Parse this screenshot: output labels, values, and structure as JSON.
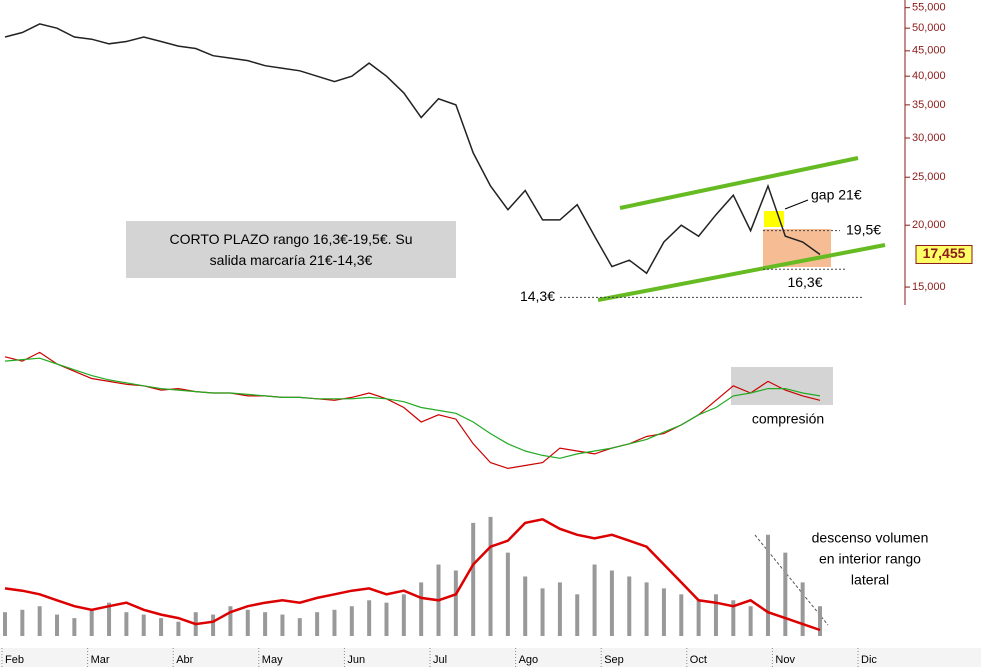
{
  "chart_data": {
    "type": "line",
    "months": [
      "Feb",
      "Mar",
      "Abr",
      "May",
      "Jun",
      "Jul",
      "Ago",
      "Sep",
      "Oct",
      "Nov",
      "Dic"
    ],
    "price": {
      "values": [
        48000,
        49000,
        51000,
        50000,
        48000,
        47500,
        46500,
        47000,
        48000,
        47000,
        46000,
        45500,
        44000,
        43500,
        43000,
        42000,
        41500,
        41000,
        40000,
        39000,
        40000,
        42500,
        40000,
        37000,
        33000,
        36000,
        35000,
        28000,
        24000,
        21500,
        23500,
        20500,
        20500,
        22000,
        19000,
        16500,
        17000,
        16000,
        18500,
        20000,
        19000,
        21000,
        23000,
        19500,
        24000,
        19000,
        18500,
        17455
      ],
      "color": "#222222",
      "ylim": [
        13800,
        57000
      ],
      "log": true,
      "yticks": [
        {
          "value": 15000,
          "label": "15,000"
        },
        {
          "value": 20000,
          "label": "20,000"
        },
        {
          "value": 25000,
          "label": "25,000"
        },
        {
          "value": 30000,
          "label": "30,000"
        },
        {
          "value": 35000,
          "label": "35,000"
        },
        {
          "value": 40000,
          "label": "40,000"
        },
        {
          "value": 45000,
          "label": "45,000"
        },
        {
          "value": 50000,
          "label": "50,000"
        },
        {
          "value": 55000,
          "label": "55,000"
        }
      ],
      "last": {
        "value": 17455,
        "label": "17,455"
      },
      "levels": [
        {
          "value": 14300,
          "label": "14,3€"
        },
        {
          "value": 19500,
          "label": "19,5€"
        },
        {
          "value": 16300,
          "label": "16,3€"
        }
      ]
    },
    "oscillator": {
      "ylim": [
        0,
        100
      ],
      "series": [
        {
          "color": "#cc0000",
          "values": [
            85,
            82,
            88,
            80,
            75,
            70,
            68,
            66,
            65,
            62,
            63,
            61,
            60,
            60,
            58,
            58,
            57,
            57,
            56,
            55,
            57,
            60,
            56,
            50,
            40,
            45,
            42,
            25,
            12,
            8,
            10,
            12,
            22,
            20,
            18,
            22,
            25,
            30,
            32,
            38,
            45,
            55,
            65,
            60,
            68,
            62,
            58,
            55
          ]
        },
        {
          "color": "#22aa22",
          "values": [
            82,
            83,
            84,
            80,
            76,
            72,
            69,
            67,
            65,
            63,
            62,
            61,
            60,
            60,
            59,
            58,
            57,
            57,
            56,
            56,
            56,
            57,
            56,
            54,
            50,
            48,
            46,
            40,
            32,
            25,
            20,
            17,
            15,
            18,
            20,
            22,
            25,
            28,
            33,
            38,
            45,
            50,
            58,
            60,
            63,
            63,
            60,
            58
          ]
        }
      ]
    },
    "volume": {
      "ylim": [
        0,
        110
      ],
      "color": "#999999",
      "values": [
        20,
        22,
        25,
        18,
        15,
        22,
        28,
        20,
        18,
        15,
        12,
        20,
        18,
        25,
        22,
        20,
        18,
        15,
        20,
        22,
        25,
        30,
        28,
        35,
        45,
        60,
        55,
        95,
        100,
        70,
        50,
        40,
        45,
        35,
        60,
        55,
        50,
        45,
        40,
        35,
        30,
        35,
        30,
        25,
        85,
        70,
        45,
        25
      ],
      "average": {
        "color": "#dd0000",
        "values": [
          40,
          38,
          35,
          30,
          25,
          22,
          25,
          28,
          22,
          18,
          15,
          10,
          12,
          20,
          25,
          28,
          30,
          28,
          32,
          35,
          38,
          40,
          35,
          38,
          32,
          30,
          35,
          60,
          75,
          80,
          95,
          98,
          90,
          85,
          82,
          85,
          80,
          75,
          60,
          45,
          30,
          28,
          25,
          30,
          20,
          15,
          10,
          5
        ]
      }
    },
    "annotations": {
      "box": "CORTO PLAZO rango 16,3€-19,5€. Su salida marcaría 21€-14,3€",
      "gap": "gap 21€",
      "compression": "compresión",
      "volume_note": [
        "descenso volumen",
        "en interior rango",
        "lateral"
      ]
    }
  }
}
